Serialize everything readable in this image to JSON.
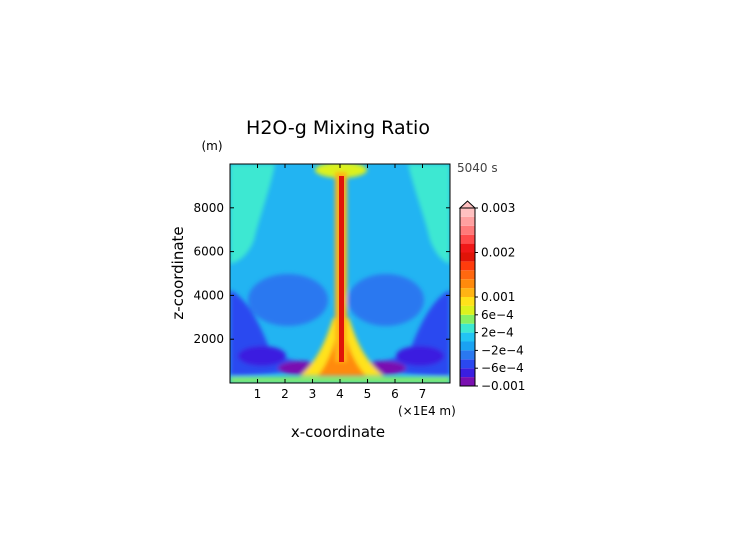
{
  "chart_data": {
    "type": "heatmap",
    "title": "H2O-g Mixing Ratio",
    "time_label": "5040 s",
    "xlabel": "x-coordinate",
    "ylabel": "z-coordinate",
    "x_unit": "(×1E4 m)",
    "y_unit": "(m)",
    "xlim": [
      0,
      8
    ],
    "ylim": [
      0,
      10000
    ],
    "x_ticks": [
      {
        "value": 1,
        "label": "1"
      },
      {
        "value": 2,
        "label": "2"
      },
      {
        "value": 3,
        "label": "3"
      },
      {
        "value": 4,
        "label": "4"
      },
      {
        "value": 5,
        "label": "5"
      },
      {
        "value": 6,
        "label": "6"
      },
      {
        "value": 7,
        "label": "7"
      }
    ],
    "y_ticks": [
      {
        "value": 2000,
        "label": "2000"
      },
      {
        "value": 4000,
        "label": "4000"
      },
      {
        "value": 6000,
        "label": "6000"
      },
      {
        "value": 8000,
        "label": "8000"
      }
    ],
    "colorbar": {
      "extend_top": true,
      "colors": [
        "#7a0fb0",
        "#3a1ee0",
        "#2a48f0",
        "#2a78f0",
        "#1aa2f2",
        "#22c4f4",
        "#3ce8d2",
        "#86f064",
        "#dcf21e",
        "#ffe21a",
        "#ffb414",
        "#ff8a0c",
        "#ff6810",
        "#ff3c0c",
        "#e01408",
        "#f01818",
        "#ff4a4a",
        "#ff7a7a",
        "#ffa0a0",
        "#ffc0c0"
      ],
      "labels": [
        {
          "level": 0,
          "text": "−0.001"
        },
        {
          "level": 2,
          "text": "−6e−4"
        },
        {
          "level": 4,
          "text": "−2e−4"
        },
        {
          "level": 6,
          "text": "2e−4"
        },
        {
          "level": 8,
          "text": "6e−4"
        },
        {
          "level": 10,
          "text": "0.001"
        },
        {
          "level": 15,
          "text": "0.002"
        },
        {
          "level": 20,
          "text": "0.003"
        }
      ]
    }
  }
}
